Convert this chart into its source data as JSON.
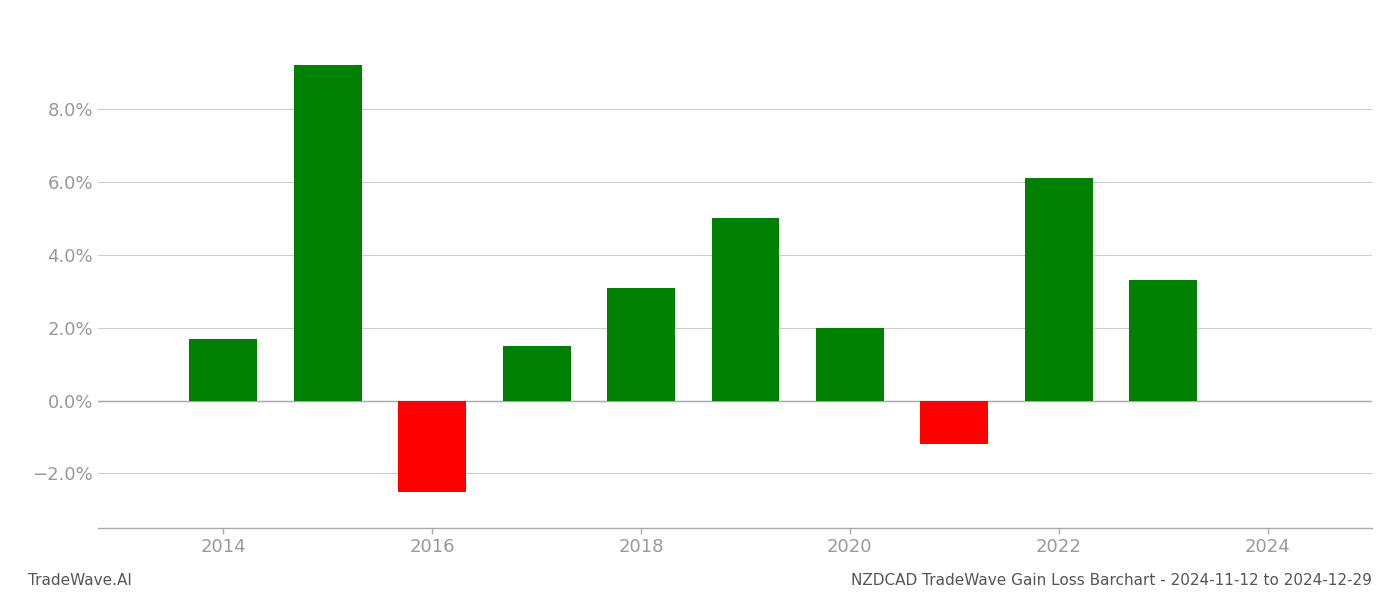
{
  "years": [
    2014,
    2015,
    2016,
    2017,
    2018,
    2019,
    2020,
    2021,
    2022,
    2023
  ],
  "values": [
    0.017,
    0.092,
    -0.025,
    0.015,
    0.031,
    0.05,
    0.02,
    -0.012,
    0.061,
    0.033
  ],
  "colors": [
    "#008000",
    "#008000",
    "#ff0000",
    "#008000",
    "#008000",
    "#008000",
    "#008000",
    "#ff0000",
    "#008000",
    "#008000"
  ],
  "ylim": [
    -0.035,
    0.105
  ],
  "yticks": [
    -0.02,
    0.0,
    0.02,
    0.04,
    0.06,
    0.08
  ],
  "bar_width": 0.65,
  "xtick_years": [
    2014,
    2016,
    2018,
    2020,
    2022,
    2024
  ],
  "xlim": [
    2012.8,
    2025.0
  ],
  "title": "NZDCAD TradeWave Gain Loss Barchart - 2024-11-12 to 2024-12-29",
  "footer_left": "TradeWave.AI",
  "background_color": "#ffffff",
  "grid_color": "#cccccc",
  "axis_label_color": "#999999",
  "footer_color": "#555555"
}
